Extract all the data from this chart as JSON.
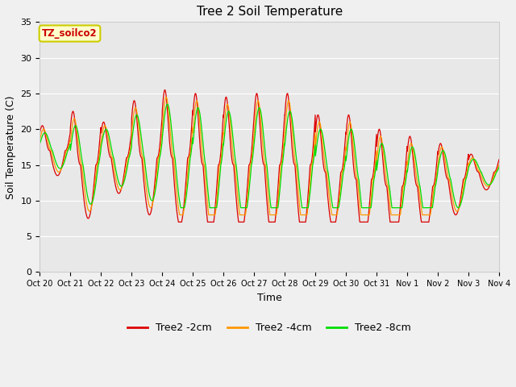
{
  "title": "Tree 2 Soil Temperature",
  "ylabel": "Soil Temperature (C)",
  "xlabel": "Time",
  "annotation": "TZ_soilco2",
  "ylim": [
    0,
    35
  ],
  "fig_facecolor": "#f0f0f0",
  "plot_bg_color": "#e8e8e8",
  "line_colors": {
    "2cm": "#dd0000",
    "4cm": "#ff9900",
    "8cm": "#00dd00"
  },
  "legend_labels": [
    "Tree2 -2cm",
    "Tree2 -4cm",
    "Tree2 -8cm"
  ],
  "xtick_labels": [
    "Oct 20",
    "Oct 21",
    "Oct 22",
    "Oct 23",
    "Oct 24",
    "Oct 25",
    "Oct 26",
    "Oct 27",
    "Oct 28",
    "Oct 29",
    "Oct 30",
    "Oct 31",
    "Nov 1",
    "Nov 2",
    "Nov 3",
    "Nov 4"
  ],
  "ytick_vals": [
    0,
    5,
    10,
    15,
    20,
    25,
    30,
    35
  ],
  "num_days": 15,
  "points_per_day": 144,
  "grid_color": "#ffffff",
  "spine_color": "#cccccc"
}
